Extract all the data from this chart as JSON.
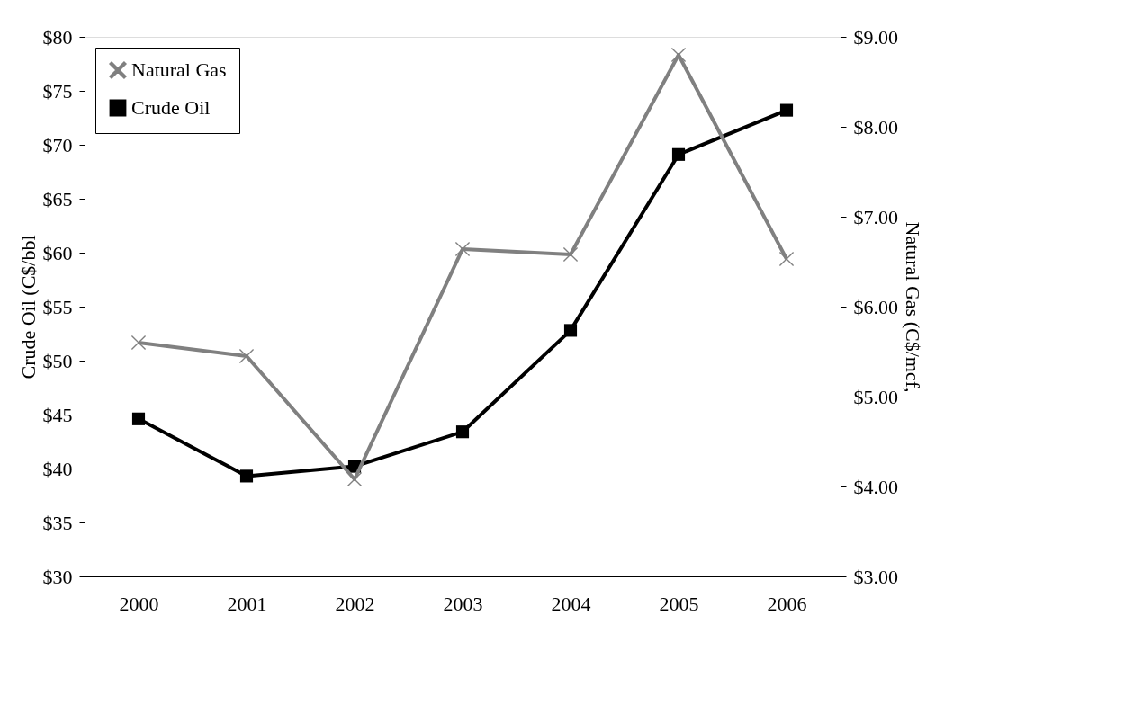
{
  "chart_data": {
    "type": "line",
    "categories": [
      "2000",
      "2001",
      "2002",
      "2003",
      "2004",
      "2005",
      "2006"
    ],
    "ylabel": "Crude Oil (C$/bbl",
    "y2label": "Natural Gas (C$/mcf,",
    "ylim": [
      30,
      80
    ],
    "yticks": [
      {
        "value": 30,
        "label": "$30"
      },
      {
        "value": 35,
        "label": "$35"
      },
      {
        "value": 40,
        "label": "$40"
      },
      {
        "value": 45,
        "label": "$45"
      },
      {
        "value": 50,
        "label": "$50"
      },
      {
        "value": 55,
        "label": "$55"
      },
      {
        "value": 60,
        "label": "$60"
      },
      {
        "value": 65,
        "label": "$65"
      },
      {
        "value": 70,
        "label": "$70"
      },
      {
        "value": 75,
        "label": "$75"
      },
      {
        "value": 80,
        "label": "$80"
      }
    ],
    "y2lim": [
      3,
      9
    ],
    "y2ticks": [
      {
        "value": 3,
        "label": "$3.00"
      },
      {
        "value": 4,
        "label": "$4.00"
      },
      {
        "value": 5,
        "label": "$5.00"
      },
      {
        "value": 6,
        "label": "$6.00"
      },
      {
        "value": 7,
        "label": "$7.00"
      },
      {
        "value": 8,
        "label": "$8.00"
      },
      {
        "value": 9,
        "label": "$9.00"
      }
    ],
    "series": [
      {
        "name": "Natural Gas",
        "color": "#808080",
        "axis": "y2",
        "marker": "cross",
        "values": [
          5.6,
          5.45,
          4.08,
          6.64,
          6.58,
          8.8,
          6.53
        ]
      },
      {
        "name": "Crude Oil",
        "color": "#000000",
        "axis": "y",
        "marker": "square",
        "values": [
          44.6,
          39.3,
          40.2,
          43.4,
          52.8,
          69.1,
          73.2
        ]
      }
    ],
    "line_style": "solid",
    "grid": false,
    "legend": "top left"
  }
}
